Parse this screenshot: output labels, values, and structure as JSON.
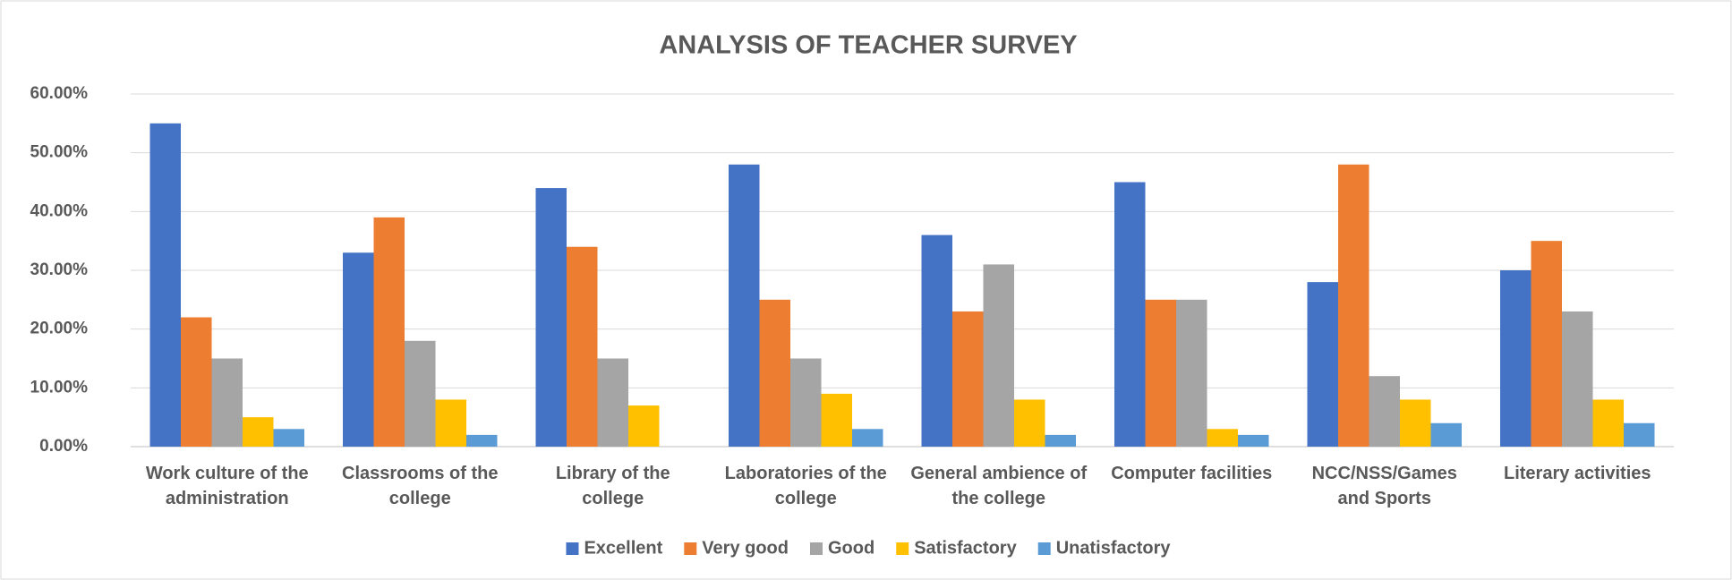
{
  "chart_data": {
    "type": "bar",
    "title": "ANALYSIS OF TEACHER SURVEY",
    "categories": [
      "Work culture of the administration",
      "Classrooms of the college",
      "Library of the college",
      "Laboratories of the college",
      "General ambience of the college",
      "Computer facilities",
      "NCC/NSS/Games and Sports",
      "Literary activities"
    ],
    "series": [
      {
        "name": "Excellent",
        "color": "#4472c4",
        "values": [
          55,
          33,
          44,
          48,
          36,
          45,
          28,
          30
        ]
      },
      {
        "name": "Very good",
        "color": "#ed7d31",
        "values": [
          22,
          39,
          34,
          25,
          23,
          25,
          48,
          35
        ]
      },
      {
        "name": "Good",
        "color": "#a5a5a5",
        "values": [
          15,
          18,
          15,
          15,
          31,
          25,
          12,
          23
        ]
      },
      {
        "name": "Satisfactory",
        "color": "#ffc000",
        "values": [
          5,
          8,
          7,
          9,
          8,
          3,
          8,
          8
        ]
      },
      {
        "name": "Unatisfactory",
        "color": "#5b9bd5",
        "values": [
          3,
          2,
          0,
          3,
          2,
          2,
          4,
          4
        ]
      }
    ],
    "ylim": [
      0,
      60
    ],
    "yticks": [
      {
        "value": 0,
        "label": "0.00%"
      },
      {
        "value": 10,
        "label": "10.00%"
      },
      {
        "value": 20,
        "label": "20.00%"
      },
      {
        "value": 30,
        "label": "30.00%"
      },
      {
        "value": 40,
        "label": "40.00%"
      },
      {
        "value": 50,
        "label": "50.00%"
      },
      {
        "value": 60,
        "label": "60.00%"
      }
    ],
    "grid": true,
    "legend": "bottom"
  }
}
